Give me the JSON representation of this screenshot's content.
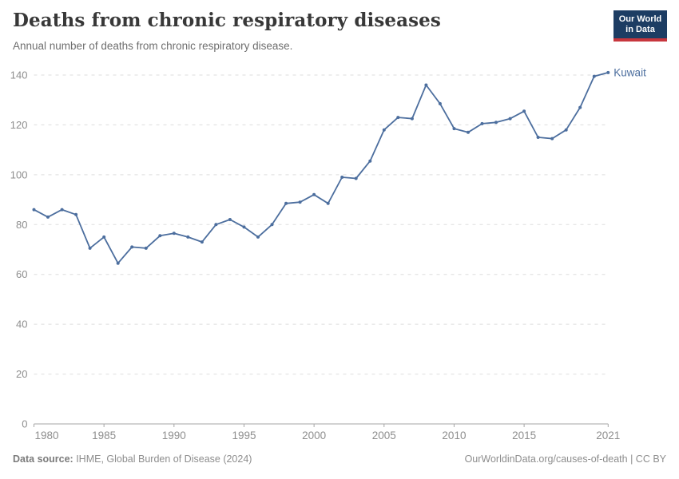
{
  "header": {
    "title": "Deaths from chronic respiratory diseases",
    "subtitle": "Annual number of deaths from chronic respiratory disease.",
    "logo": {
      "line1": "Our World",
      "line2": "in Data"
    }
  },
  "chart_data": {
    "type": "line",
    "title": "Deaths from chronic respiratory diseases",
    "xlabel": "",
    "ylabel": "",
    "xlim": [
      1980,
      2021
    ],
    "ylim": [
      0,
      140
    ],
    "yticks": [
      0,
      20,
      40,
      60,
      80,
      100,
      120,
      140
    ],
    "xticks": [
      1980,
      1985,
      1990,
      1995,
      2000,
      2005,
      2010,
      2015,
      2021
    ],
    "grid": "horizontal-dashed",
    "legend_position": "line-end-label",
    "x": [
      1980,
      1981,
      1982,
      1983,
      1984,
      1985,
      1986,
      1987,
      1988,
      1989,
      1990,
      1991,
      1992,
      1993,
      1994,
      1995,
      1996,
      1997,
      1998,
      1999,
      2000,
      2001,
      2002,
      2003,
      2004,
      2005,
      2006,
      2007,
      2008,
      2009,
      2010,
      2011,
      2012,
      2013,
      2014,
      2015,
      2016,
      2017,
      2018,
      2019,
      2020,
      2021
    ],
    "series": [
      {
        "name": "Kuwait",
        "color": "#4c6e9e",
        "values": [
          86,
          83,
          86,
          84,
          70.5,
          75,
          64.5,
          71,
          70.5,
          75.5,
          76.5,
          75,
          73,
          80,
          82,
          79,
          75,
          80,
          88.5,
          89,
          92,
          88.5,
          99,
          98.5,
          105.5,
          118,
          123,
          122.5,
          136,
          128.5,
          118.5,
          117,
          120.5,
          121,
          122.5,
          125.5,
          115,
          114.5,
          118,
          127,
          139.5,
          141
        ]
      }
    ]
  },
  "footer": {
    "source_label": "Data source:",
    "source_text": " IHME, Global Burden of Disease (2024)",
    "credit": "OurWorldinData.org/causes-of-death | CC BY"
  },
  "colors": {
    "line": "#4c6e9e",
    "axis_label": "#8e8e8e",
    "axis_line": "#a5a5a5",
    "gridline": "#dddddd",
    "logo_bg": "#1d3d63",
    "logo_bar": "#c7363d"
  }
}
